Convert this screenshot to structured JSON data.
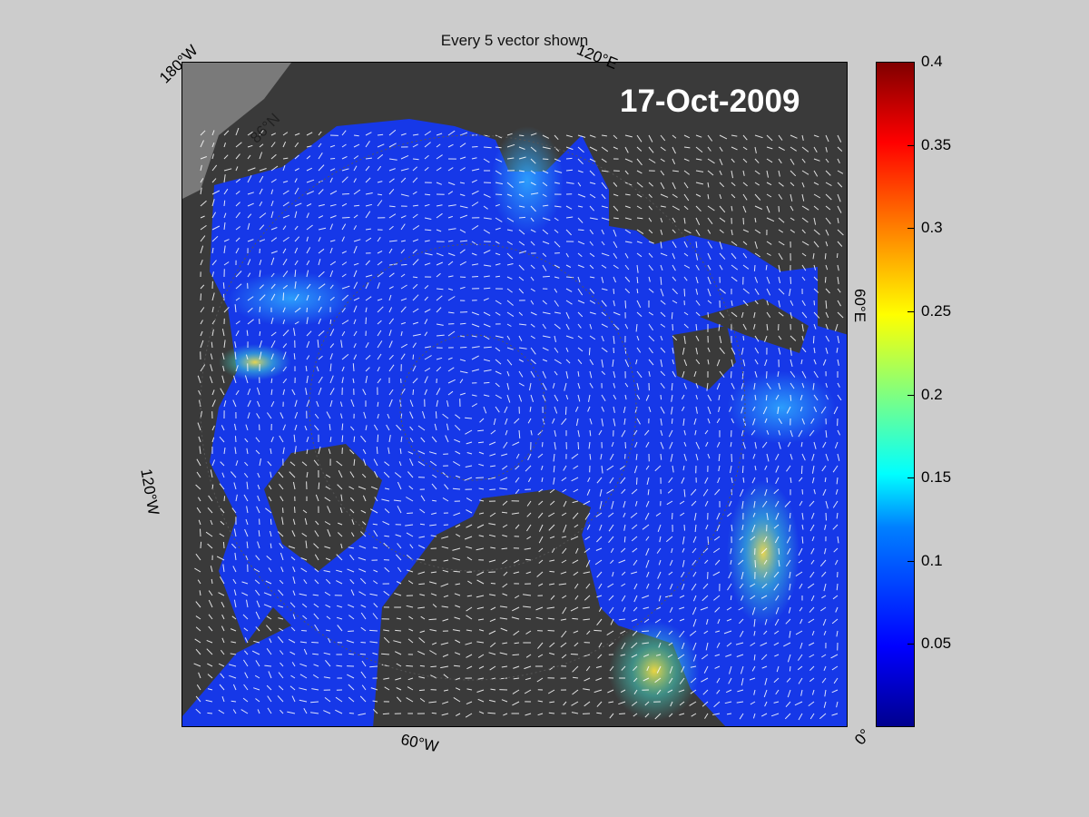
{
  "title": "Every 5 vector shown",
  "date": "17-Oct-2009",
  "coordinate_labels": {
    "lon_180w": "180°W",
    "lon_120e": "120°E",
    "lon_60e": "60°E",
    "lon_120w": "120°W",
    "lon_60w": "60°W",
    "lon_0": "0°",
    "lat_86n": "86°N"
  },
  "colorbar": {
    "colormap": "jet",
    "min": 0,
    "max": 0.4,
    "ticks": [
      "0.4",
      "0.35",
      "0.3",
      "0.25",
      "0.2",
      "0.15",
      "0.1",
      "0.05"
    ],
    "tick_values": [
      0.4,
      0.35,
      0.3,
      0.25,
      0.2,
      0.15,
      0.1,
      0.05
    ]
  },
  "colors": {
    "background": "#cccccc",
    "land": "#3a3a3a",
    "ice_field": "#1638e8",
    "vectors": "#ffffff",
    "label": "#ffffff"
  }
}
